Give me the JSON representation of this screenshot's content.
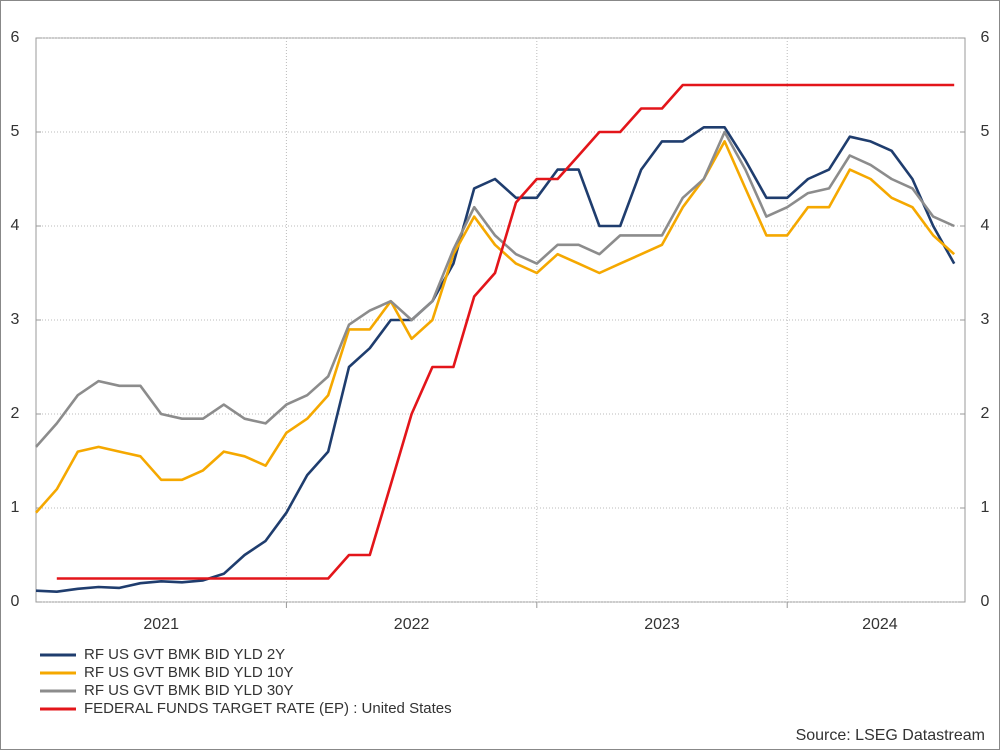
{
  "chart_data": {
    "type": "line",
    "x": [
      2021,
      2021.083,
      2021.167,
      2021.25,
      2021.333,
      2021.417,
      2021.5,
      2021.583,
      2021.667,
      2021.75,
      2021.833,
      2021.917,
      2022,
      2022.083,
      2022.167,
      2022.25,
      2022.333,
      2022.417,
      2022.5,
      2022.583,
      2022.667,
      2022.75,
      2022.833,
      2022.917,
      2023,
      2023.083,
      2023.167,
      2023.25,
      2023.333,
      2023.417,
      2023.5,
      2023.583,
      2023.667,
      2023.75,
      2023.833,
      2023.917,
      2024,
      2024.083,
      2024.167,
      2024.25,
      2024.333,
      2024.417,
      2024.5,
      2024.583,
      2024.667
    ],
    "series": [
      {
        "name": "RF US GVT BMK BID YLD 2Y",
        "color": "#1f3d6e",
        "values": [
          0.12,
          0.11,
          0.14,
          0.16,
          0.15,
          0.2,
          0.22,
          0.21,
          0.23,
          0.3,
          0.5,
          0.65,
          0.95,
          1.35,
          1.6,
          2.5,
          2.7,
          3.0,
          3.0,
          3.2,
          3.6,
          4.4,
          4.5,
          4.3,
          4.3,
          4.6,
          4.6,
          4.0,
          4.0,
          4.6,
          4.9,
          4.9,
          5.05,
          5.05,
          4.7,
          4.3,
          4.3,
          4.5,
          4.6,
          4.95,
          4.9,
          4.8,
          4.5,
          4.0,
          3.6
        ]
      },
      {
        "name": "RF US GVT BMK BID YLD 10Y",
        "color": "#f5a800",
        "values": [
          0.95,
          1.2,
          1.6,
          1.65,
          1.6,
          1.55,
          1.3,
          1.3,
          1.4,
          1.6,
          1.55,
          1.45,
          1.8,
          1.95,
          2.2,
          2.9,
          2.9,
          3.2,
          2.8,
          3.0,
          3.7,
          4.1,
          3.8,
          3.6,
          3.5,
          3.7,
          3.6,
          3.5,
          3.6,
          3.7,
          3.8,
          4.2,
          4.5,
          4.9,
          4.4,
          3.9,
          3.9,
          4.2,
          4.2,
          4.6,
          4.5,
          4.3,
          4.2,
          3.9,
          3.7
        ]
      },
      {
        "name": "RF US GVT BMK BID YLD 30Y",
        "color": "#8c8c8c",
        "values": [
          1.65,
          1.9,
          2.2,
          2.35,
          2.3,
          2.3,
          2.0,
          1.95,
          1.95,
          2.1,
          1.95,
          1.9,
          2.1,
          2.2,
          2.4,
          2.95,
          3.1,
          3.2,
          3.0,
          3.2,
          3.75,
          4.2,
          3.9,
          3.7,
          3.6,
          3.8,
          3.8,
          3.7,
          3.9,
          3.9,
          3.9,
          4.3,
          4.5,
          5.0,
          4.6,
          4.1,
          4.2,
          4.35,
          4.4,
          4.75,
          4.65,
          4.5,
          4.4,
          4.1,
          4.0
        ]
      },
      {
        "name": "FEDERAL FUNDS TARGET RATE (EP) : United States",
        "color": "#e3151a",
        "values": [
          null,
          0.25,
          0.25,
          0.25,
          0.25,
          0.25,
          0.25,
          0.25,
          0.25,
          0.25,
          0.25,
          0.25,
          0.25,
          0.25,
          0.25,
          0.5,
          0.5,
          1.25,
          2.0,
          2.5,
          2.5,
          3.25,
          3.5,
          4.25,
          4.5,
          4.5,
          4.75,
          5.0,
          5.0,
          5.25,
          5.25,
          5.5,
          5.5,
          5.5,
          5.5,
          5.5,
          5.5,
          5.5,
          5.5,
          5.5,
          5.5,
          5.5,
          5.5,
          5.5,
          5.5
        ]
      }
    ],
    "xlim": [
      2021,
      2024.71
    ],
    "xticks": [
      {
        "value": 2021.5,
        "label": "2021"
      },
      {
        "value": 2022.5,
        "label": "2022"
      },
      {
        "value": 2023.5,
        "label": "2023"
      },
      {
        "value": 2024.37,
        "label": "2024"
      }
    ],
    "xgrid": [
      2022,
      2023,
      2024
    ],
    "ylim": [
      0,
      6
    ],
    "yticks": [
      0,
      1,
      2,
      3,
      4,
      5,
      6
    ],
    "y2lim": [
      0,
      6
    ],
    "y2ticks": [
      0,
      1,
      2,
      3,
      4,
      5,
      6
    ],
    "grid": true,
    "legend": "bottom-left",
    "source": "Source: LSEG Datastream"
  }
}
